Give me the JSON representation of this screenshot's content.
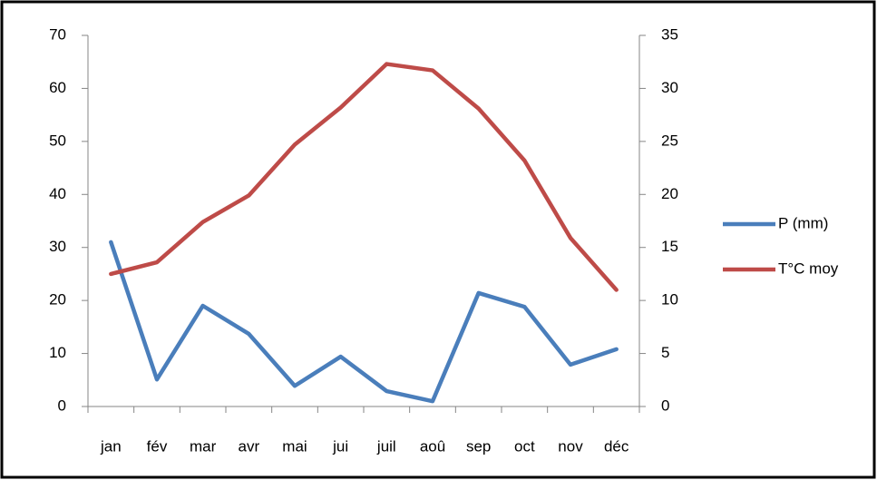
{
  "chart_data": {
    "type": "line",
    "categories": [
      "jan",
      "fév",
      "mar",
      "avr",
      "mai",
      "jui",
      "juil",
      "aoû",
      "sep",
      "oct",
      "nov",
      "déc"
    ],
    "series": [
      {
        "name": "P (mm)",
        "color": "#4a7ebb",
        "values": [
          31.0,
          5.1,
          19.0,
          13.7,
          3.9,
          9.4,
          2.9,
          1.0,
          21.4,
          18.8,
          7.9,
          10.8
        ]
      },
      {
        "name": "T°C moy",
        "color": "#be4b48",
        "axis": "y2",
        "values": [
          12.5,
          13.6,
          17.4,
          19.9,
          24.7,
          28.2,
          32.3,
          31.7,
          28.1,
          23.2,
          15.9,
          11.0
        ]
      }
    ],
    "ylim": [
      0,
      70
    ],
    "yticks": [
      0,
      10,
      20,
      30,
      40,
      50,
      60,
      70
    ],
    "y2lim": [
      0,
      35
    ],
    "y2ticks": [
      0,
      5,
      10,
      15,
      20,
      25,
      30,
      35
    ],
    "grid": false,
    "legend": "right"
  }
}
